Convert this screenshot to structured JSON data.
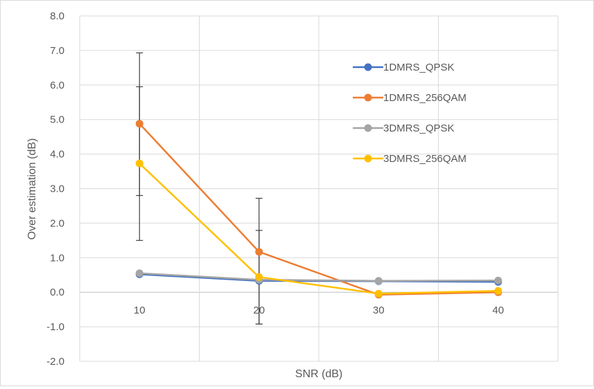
{
  "chart_data": {
    "type": "line",
    "title": "",
    "xlabel": "SNR (dB)",
    "ylabel": "Over estimation (dB)",
    "categories": [
      "10",
      "20",
      "30",
      "40"
    ],
    "ylim": [
      -2.0,
      8.0
    ],
    "yticks": [
      "8.0",
      "7.0",
      "6.0",
      "5.0",
      "4.0",
      "3.0",
      "2.0",
      "1.0",
      "0.0",
      "-1.0",
      "-2.0"
    ],
    "ytick_values": [
      8,
      7,
      6,
      5,
      4,
      3,
      2,
      1,
      0,
      -1,
      -2
    ],
    "grid": true,
    "legend_position": "top-right",
    "series": [
      {
        "name": "1DMRS_QPSK",
        "color": "#4472c4",
        "values": [
          0.52,
          0.33,
          0.32,
          0.3
        ]
      },
      {
        "name": "1DMRS_256QAM",
        "color": "#ed7d31",
        "values": [
          4.88,
          1.17,
          -0.07,
          0.0
        ]
      },
      {
        "name": "3DMRS_QPSK",
        "color": "#a5a5a5",
        "values": [
          0.55,
          0.36,
          0.33,
          0.34
        ]
      },
      {
        "name": "3DMRS_256QAM",
        "color": "#ffc000",
        "values": [
          3.73,
          0.44,
          -0.04,
          0.04
        ]
      }
    ],
    "error_bars": [
      {
        "x": "10",
        "low": 2.8,
        "high": 6.93
      },
      {
        "x": "10",
        "low": 1.5,
        "high": 5.95
      },
      {
        "x": "20",
        "low": -0.92,
        "high": 2.72
      },
      {
        "x": "20",
        "low": -0.92,
        "high": 1.79
      }
    ]
  }
}
